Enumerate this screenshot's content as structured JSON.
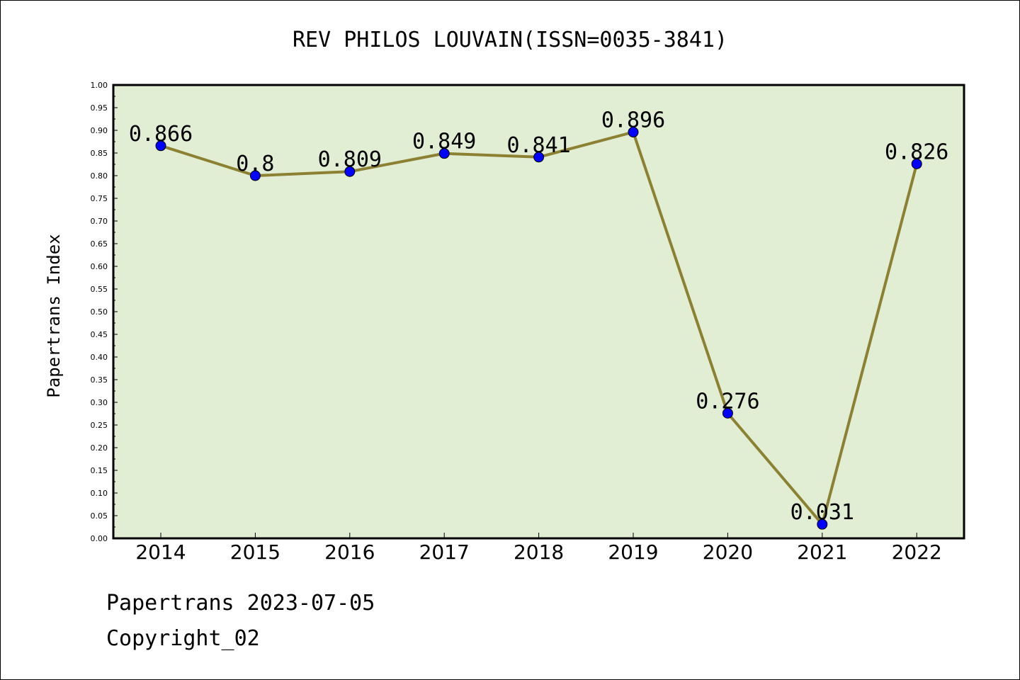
{
  "chart_data": {
    "type": "line",
    "title": "REV PHILOS LOUVAIN(ISSN=0035-3841)",
    "xlabel": "",
    "ylabel": "Papertrans Index",
    "categories": [
      "2014",
      "2015",
      "2016",
      "2017",
      "2018",
      "2019",
      "2020",
      "2021",
      "2022"
    ],
    "series": [
      {
        "values": [
          0.866,
          0.8,
          0.809,
          0.849,
          0.841,
          0.896,
          0.276,
          0.031,
          0.826
        ],
        "data_labels": [
          "0.866",
          "0.8",
          "0.809",
          "0.849",
          "0.841",
          "0.896",
          "0.276",
          "0.031",
          "0.826"
        ]
      }
    ],
    "ylim": [
      0,
      1
    ],
    "yticks": [
      "0.00",
      "0.05",
      "0.10",
      "0.15",
      "0.20",
      "0.25",
      "0.30",
      "0.35",
      "0.40",
      "0.45",
      "0.50",
      "0.55",
      "0.60",
      "0.65",
      "0.70",
      "0.75",
      "0.80",
      "0.85",
      "0.90",
      "0.95",
      "1.00"
    ],
    "grid": false,
    "colors": {
      "plot_background": "#e1eed4",
      "line": "#8c8033",
      "marker": "#0000ff"
    }
  },
  "footer": {
    "line1": "Papertrans 2023-07-05",
    "line2": "Copyright_02"
  }
}
